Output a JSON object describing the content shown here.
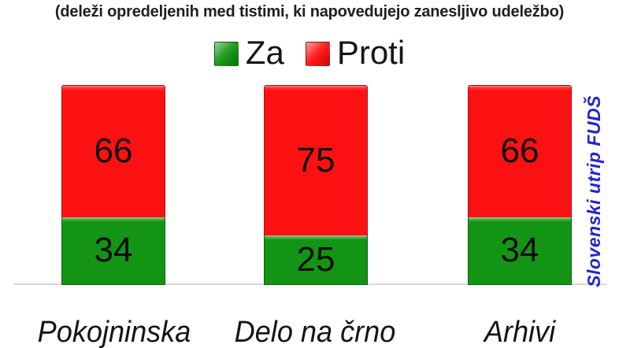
{
  "title": "(deleži opredeljenih med tistimi, ki napovedujejo zanesljivo udeležbo)",
  "watermark": "Slovenski utrip FUDŠ",
  "colors": {
    "za_green": "#149414",
    "proti_red": "#fb1111",
    "watermark_blue": "#2424cc",
    "axis_line": "#d9d9d9"
  },
  "legend": {
    "items": [
      {
        "label": "Za",
        "swatch": "green-swatch"
      },
      {
        "label": "Proti",
        "swatch": "red-swatch"
      }
    ]
  },
  "chart_data": {
    "type": "bar",
    "stacked": true,
    "categories": [
      "Pokojninska",
      "Delo na črno",
      "Arhivi"
    ],
    "series": [
      {
        "name": "Za",
        "color": "#149414",
        "values": [
          34,
          25,
          34
        ]
      },
      {
        "name": "Proti",
        "color": "#fb1111",
        "values": [
          66,
          75,
          66
        ]
      }
    ],
    "title": "(deleži opredeljenih med tistimi, ki napovedujejo zanesljivo udeležbo)",
    "xlabel": "",
    "ylabel": "",
    "ylim": [
      0,
      100
    ],
    "grid": false,
    "legend_position": "top",
    "data_labels": true,
    "annotation": "Slovenski utrip FUDŠ"
  }
}
